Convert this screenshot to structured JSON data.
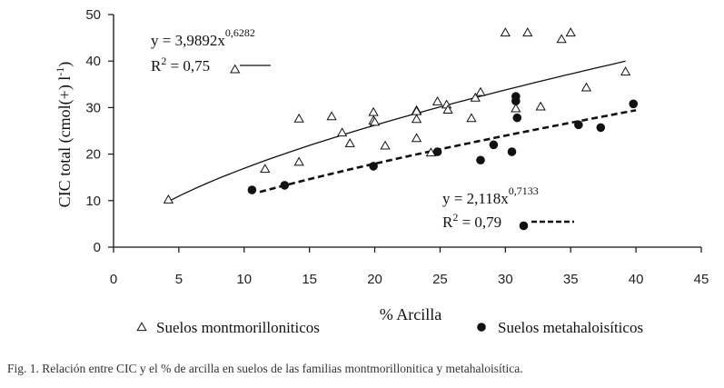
{
  "chart_data": {
    "type": "scatter",
    "xlabel": "% Arcilla",
    "ylabel": "CIC total (cmol(+) l",
    "ylabel_sup": "-1",
    "ylabel_close": ")",
    "xlim": [
      0,
      45
    ],
    "ylim": [
      0,
      50
    ],
    "xticks": [
      0,
      5,
      10,
      15,
      20,
      25,
      30,
      35,
      40,
      45
    ],
    "yticks": [
      0,
      10,
      20,
      30,
      40,
      50
    ],
    "grid": false,
    "legend_position": "bottom",
    "series": [
      {
        "name": "Suelos montmorilloniticos",
        "marker": "open-triangle",
        "color": "#111111",
        "trend": {
          "type": "power",
          "a": 3.9892,
          "b": 0.6282,
          "x_range": [
            4.3,
            39.2
          ],
          "style": "solid"
        },
        "points": [
          [
            4.2,
            10.2
          ],
          [
            9.3,
            38.2
          ],
          [
            11.6,
            16.8
          ],
          [
            14.2,
            18.3
          ],
          [
            14.2,
            27.6
          ],
          [
            16.7,
            28.1
          ],
          [
            17.5,
            24.6
          ],
          [
            18.1,
            22.3
          ],
          [
            19.9,
            29.0
          ],
          [
            19.9,
            27.2
          ],
          [
            20.0,
            26.9
          ],
          [
            20.8,
            21.8
          ],
          [
            23.2,
            29.4
          ],
          [
            23.2,
            29.2
          ],
          [
            23.2,
            27.5
          ],
          [
            23.2,
            23.4
          ],
          [
            24.3,
            20.3
          ],
          [
            24.8,
            31.3
          ],
          [
            25.5,
            30.6
          ],
          [
            25.6,
            29.5
          ],
          [
            27.4,
            27.7
          ],
          [
            27.7,
            32.1
          ],
          [
            28.1,
            33.3
          ],
          [
            30.0,
            46.1
          ],
          [
            30.8,
            29.8
          ],
          [
            31.7,
            46.1
          ],
          [
            32.7,
            30.2
          ],
          [
            34.3,
            44.7
          ],
          [
            35.0,
            46.1
          ],
          [
            36.2,
            34.3
          ],
          [
            39.2,
            37.7
          ]
        ]
      },
      {
        "name": "Suelos metahaloisíticos",
        "marker": "filled-circle",
        "color": "#111111",
        "trend": {
          "type": "power",
          "a": 2.118,
          "b": 0.7133,
          "x_range": [
            11.2,
            40.0
          ],
          "style": "dashed"
        },
        "points": [
          [
            10.6,
            12.3
          ],
          [
            13.1,
            13.3
          ],
          [
            19.9,
            17.4
          ],
          [
            24.8,
            20.5
          ],
          [
            28.1,
            18.7
          ],
          [
            29.1,
            22.0
          ],
          [
            30.5,
            20.5
          ],
          [
            30.8,
            32.4
          ],
          [
            30.8,
            31.4
          ],
          [
            30.9,
            27.8
          ],
          [
            31.4,
            4.6
          ],
          [
            35.6,
            26.3
          ],
          [
            37.3,
            25.7
          ],
          [
            39.8,
            30.8
          ]
        ]
      }
    ],
    "annotations": [
      {
        "series": 0,
        "eq_base": "y = 3,9892x",
        "eq_exp": "0,6282",
        "r2_prefix": "R",
        "r2_sup": "2",
        "r2_value": " = 0,75"
      },
      {
        "series": 1,
        "eq_base": "y = 2,118x",
        "eq_exp": "0,7133",
        "r2_prefix": "R",
        "r2_sup": "2",
        "r2_value": " = 0,79"
      }
    ]
  },
  "caption": "Fig. 1.   Relación entre CIC y el % de arcilla en suelos de las familias montmorillonitica y metahaloisítica."
}
